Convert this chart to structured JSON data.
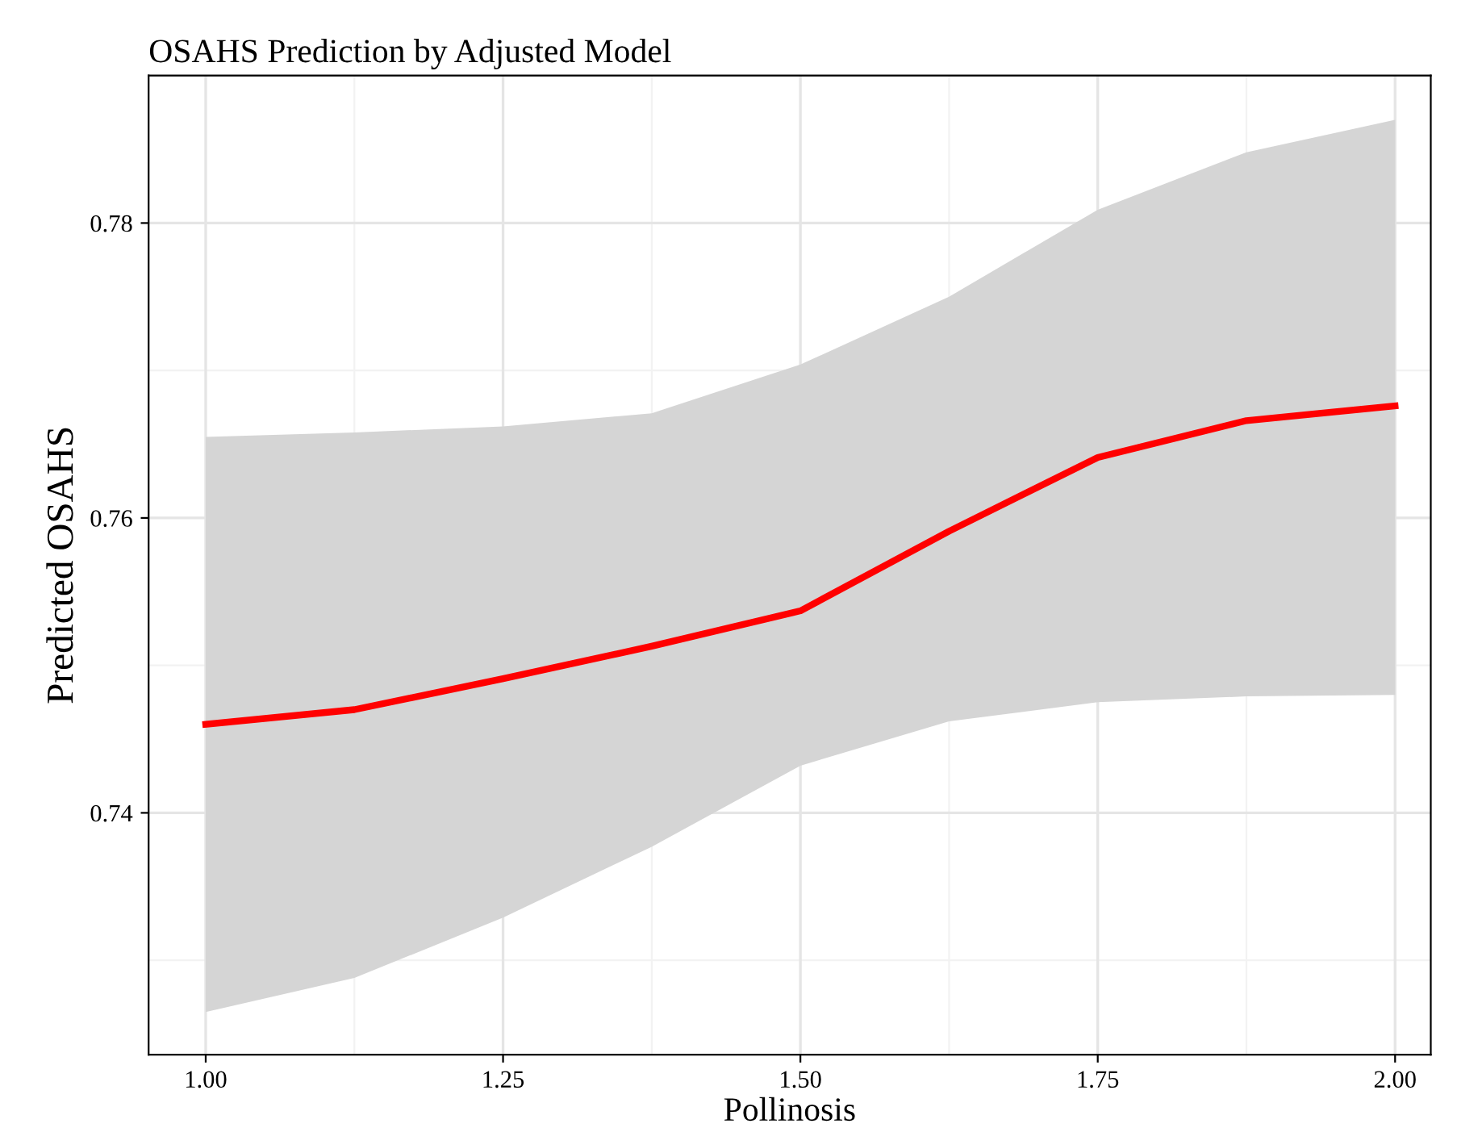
{
  "chart_data": {
    "type": "line",
    "title": "OSAHS Prediction by Adjusted Model",
    "xlabel": "Pollinosis",
    "ylabel": "Predicted OSAHS",
    "x": [
      1.0,
      1.125,
      1.25,
      1.375,
      1.5,
      1.625,
      1.75,
      1.875,
      2.0
    ],
    "series": [
      {
        "color": "#ff0000",
        "values": [
          0.746,
          0.747,
          0.7491,
          0.7513,
          0.7537,
          0.7591,
          0.7641,
          0.7666,
          0.7676
        ],
        "lower": [
          0.7265,
          0.7288,
          0.7329,
          0.7377,
          0.7432,
          0.7462,
          0.7475,
          0.7479,
          0.748
        ],
        "upper": [
          0.7655,
          0.7658,
          0.7662,
          0.7671,
          0.7704,
          0.775,
          0.7809,
          0.7848,
          0.787
        ]
      }
    ],
    "xlim": [
      0.952,
      2.03
    ],
    "ylim": [
      0.7236,
      0.79
    ],
    "xticks": [
      {
        "value": 1.0,
        "label": "1.00"
      },
      {
        "value": 1.25,
        "label": "1.25"
      },
      {
        "value": 1.5,
        "label": "1.50"
      },
      {
        "value": 1.75,
        "label": "1.75"
      },
      {
        "value": 2.0,
        "label": "2.00"
      }
    ],
    "yticks": [
      {
        "value": 0.74,
        "label": "0.74"
      },
      {
        "value": 0.76,
        "label": "0.76"
      },
      {
        "value": 0.78,
        "label": "0.78"
      }
    ],
    "grid": true,
    "legend": false,
    "marker": "none",
    "line_style": "solid"
  }
}
